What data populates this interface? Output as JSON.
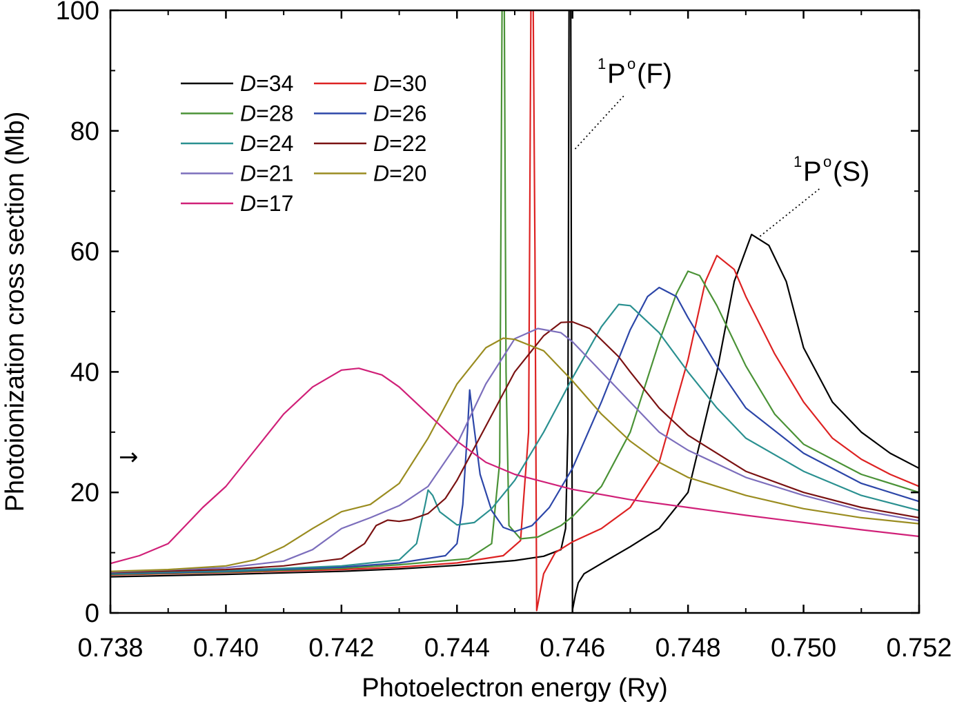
{
  "chart_data": {
    "type": "line",
    "xlabel": "Photoelectron energy (Ry)",
    "ylabel": "Photoionization cross section (Mb)",
    "xlim": [
      0.738,
      0.752
    ],
    "ylim": [
      0,
      100
    ],
    "xticks": [
      "0.738",
      "0.740",
      "0.742",
      "0.744",
      "0.746",
      "0.748",
      "0.750",
      "0.752"
    ],
    "yticks": [
      "0",
      "20",
      "40",
      "60",
      "80",
      "100"
    ],
    "grid": false,
    "legend_position": "top-left",
    "annotations": {
      "arrow": "→",
      "resonance_F": {
        "sup": "1",
        "base": "P",
        "sup2": "o",
        "text": "(F)",
        "x": 0.74595,
        "y": 77
      },
      "resonance_S": {
        "sup": "1",
        "base": "P",
        "sup2": "o",
        "text": "(S)",
        "x": 0.74915,
        "y": 62.5
      }
    },
    "series": [
      {
        "name": "D=34",
        "legend_italic": "D",
        "legend_rest": "=34",
        "color": "#000000",
        "points": [
          [
            0.738,
            6.0
          ],
          [
            0.74,
            6.4
          ],
          [
            0.742,
            6.9
          ],
          [
            0.743,
            7.3
          ],
          [
            0.744,
            7.9
          ],
          [
            0.745,
            8.7
          ],
          [
            0.7455,
            9.4
          ],
          [
            0.7458,
            10.5
          ],
          [
            0.74588,
            14
          ],
          [
            0.74592,
            30
          ],
          [
            0.74594,
            100
          ],
          [
            0.74597,
            100
          ],
          [
            0.74598,
            60
          ],
          [
            0.746,
            0.5
          ],
          [
            0.74605,
            3
          ],
          [
            0.7461,
            5
          ],
          [
            0.7462,
            6.5
          ],
          [
            0.7465,
            8.2
          ],
          [
            0.747,
            11.0
          ],
          [
            0.7475,
            14.0
          ],
          [
            0.748,
            20.0
          ],
          [
            0.7485,
            40.0
          ],
          [
            0.7488,
            55.0
          ],
          [
            0.7491,
            62.8
          ],
          [
            0.7494,
            61.0
          ],
          [
            0.7497,
            55.0
          ],
          [
            0.75,
            44.0
          ],
          [
            0.7505,
            35.0
          ],
          [
            0.751,
            30.0
          ],
          [
            0.7515,
            26.5
          ],
          [
            0.752,
            24.0
          ]
        ]
      },
      {
        "name": "D=30",
        "legend_italic": "D",
        "legend_rest": "=30",
        "color": "#dd2222",
        "points": [
          [
            0.738,
            6.3
          ],
          [
            0.74,
            6.7
          ],
          [
            0.742,
            7.2
          ],
          [
            0.743,
            7.6
          ],
          [
            0.744,
            8.3
          ],
          [
            0.7448,
            9.5
          ],
          [
            0.7451,
            12
          ],
          [
            0.74524,
            30
          ],
          [
            0.74528,
            100
          ],
          [
            0.74532,
            100
          ],
          [
            0.74535,
            60
          ],
          [
            0.74538,
            0.4
          ],
          [
            0.74545,
            4
          ],
          [
            0.7455,
            6.5
          ],
          [
            0.7457,
            10.0
          ],
          [
            0.746,
            11.8
          ],
          [
            0.7465,
            14.0
          ],
          [
            0.747,
            17.5
          ],
          [
            0.7475,
            25.0
          ],
          [
            0.748,
            42.0
          ],
          [
            0.7483,
            55.0
          ],
          [
            0.7485,
            59.3
          ],
          [
            0.7488,
            57.0
          ],
          [
            0.749,
            52.5
          ],
          [
            0.7495,
            43.0
          ],
          [
            0.75,
            35.0
          ],
          [
            0.7505,
            29.0
          ],
          [
            0.751,
            25.5
          ],
          [
            0.7515,
            23.0
          ],
          [
            0.752,
            21.0
          ]
        ]
      },
      {
        "name": "D=28",
        "legend_italic": "D",
        "legend_rest": "=28",
        "color": "#4a9236",
        "points": [
          [
            0.738,
            6.4
          ],
          [
            0.74,
            6.8
          ],
          [
            0.742,
            7.4
          ],
          [
            0.743,
            8.0
          ],
          [
            0.7442,
            9.0
          ],
          [
            0.7446,
            11.5
          ],
          [
            0.74474,
            25
          ],
          [
            0.74478,
            100
          ],
          [
            0.74482,
            100
          ],
          [
            0.74485,
            40
          ],
          [
            0.7449,
            14.5
          ],
          [
            0.7451,
            12.3
          ],
          [
            0.7454,
            12.6
          ],
          [
            0.7458,
            14.5
          ],
          [
            0.746,
            16.0
          ],
          [
            0.7465,
            21.0
          ],
          [
            0.747,
            30.0
          ],
          [
            0.7475,
            45.0
          ],
          [
            0.7478,
            53.0
          ],
          [
            0.748,
            56.7
          ],
          [
            0.7482,
            56.0
          ],
          [
            0.7485,
            51.0
          ],
          [
            0.749,
            41.0
          ],
          [
            0.7495,
            33.0
          ],
          [
            0.75,
            28.0
          ],
          [
            0.751,
            23.0
          ],
          [
            0.752,
            20.0
          ]
        ]
      },
      {
        "name": "D=26",
        "legend_italic": "D",
        "legend_rest": "=26",
        "color": "#2c46a8",
        "points": [
          [
            0.738,
            6.5
          ],
          [
            0.74,
            6.9
          ],
          [
            0.742,
            7.6
          ],
          [
            0.743,
            8.3
          ],
          [
            0.7438,
            9.5
          ],
          [
            0.744,
            11.5
          ],
          [
            0.7441,
            18
          ],
          [
            0.74418,
            30
          ],
          [
            0.74422,
            37
          ],
          [
            0.74428,
            32
          ],
          [
            0.7444,
            23
          ],
          [
            0.7446,
            17.0
          ],
          [
            0.7448,
            14.2
          ],
          [
            0.745,
            13.5
          ],
          [
            0.7453,
            14.5
          ],
          [
            0.7456,
            17.5
          ],
          [
            0.746,
            24.0
          ],
          [
            0.7465,
            35.0
          ],
          [
            0.747,
            47.0
          ],
          [
            0.7473,
            52.5
          ],
          [
            0.7475,
            54.0
          ],
          [
            0.7478,
            52.5
          ],
          [
            0.748,
            49.0
          ],
          [
            0.7485,
            41.0
          ],
          [
            0.749,
            34.0
          ],
          [
            0.75,
            26.5
          ],
          [
            0.751,
            21.5
          ],
          [
            0.752,
            18.5
          ]
        ]
      },
      {
        "name": "D=24",
        "legend_italic": "D",
        "legend_rest": "=24",
        "color": "#2a9090",
        "points": [
          [
            0.738,
            6.6
          ],
          [
            0.74,
            7.0
          ],
          [
            0.742,
            7.8
          ],
          [
            0.743,
            8.8
          ],
          [
            0.7433,
            11.5
          ],
          [
            0.74345,
            18
          ],
          [
            0.7435,
            20.4
          ],
          [
            0.74358,
            19.5
          ],
          [
            0.7437,
            16.8
          ],
          [
            0.744,
            14.6
          ],
          [
            0.7443,
            15.0
          ],
          [
            0.7446,
            17.3
          ],
          [
            0.745,
            22.0
          ],
          [
            0.7455,
            30.0
          ],
          [
            0.746,
            39.0
          ],
          [
            0.7465,
            47.5
          ],
          [
            0.7468,
            51.2
          ],
          [
            0.747,
            51.0
          ],
          [
            0.7475,
            46.5
          ],
          [
            0.748,
            40.0
          ],
          [
            0.7485,
            34.0
          ],
          [
            0.749,
            29.0
          ],
          [
            0.75,
            23.5
          ],
          [
            0.751,
            19.5
          ],
          [
            0.752,
            17.0
          ]
        ]
      },
      {
        "name": "D=22",
        "legend_italic": "D",
        "legend_rest": "=22",
        "color": "#7a1212",
        "points": [
          [
            0.738,
            6.7
          ],
          [
            0.74,
            7.2
          ],
          [
            0.741,
            7.8
          ],
          [
            0.742,
            9.0
          ],
          [
            0.7424,
            11.5
          ],
          [
            0.7426,
            14.5
          ],
          [
            0.7428,
            15.4
          ],
          [
            0.743,
            15.2
          ],
          [
            0.7432,
            15.5
          ],
          [
            0.7435,
            16.5
          ],
          [
            0.7438,
            19.0
          ],
          [
            0.744,
            22.0
          ],
          [
            0.7445,
            31.0
          ],
          [
            0.745,
            40.0
          ],
          [
            0.7455,
            46.0
          ],
          [
            0.7458,
            48.2
          ],
          [
            0.746,
            48.3
          ],
          [
            0.7463,
            47.2
          ],
          [
            0.7468,
            42.5
          ],
          [
            0.747,
            40.0
          ],
          [
            0.7475,
            34.0
          ],
          [
            0.748,
            29.5
          ],
          [
            0.749,
            23.5
          ],
          [
            0.75,
            20.0
          ],
          [
            0.751,
            17.5
          ],
          [
            0.752,
            15.8
          ]
        ]
      },
      {
        "name": "D=21",
        "legend_italic": "D",
        "legend_rest": "=21",
        "color": "#7c6ebc",
        "points": [
          [
            0.738,
            6.8
          ],
          [
            0.74,
            7.5
          ],
          [
            0.741,
            8.6
          ],
          [
            0.7415,
            10.5
          ],
          [
            0.742,
            14.0
          ],
          [
            0.7425,
            15.8
          ],
          [
            0.743,
            17.8
          ],
          [
            0.7435,
            21.0
          ],
          [
            0.744,
            28.0
          ],
          [
            0.7445,
            38.0
          ],
          [
            0.745,
            45.5
          ],
          [
            0.7454,
            47.2
          ],
          [
            0.7458,
            46.5
          ],
          [
            0.746,
            45.0
          ],
          [
            0.7465,
            40.0
          ],
          [
            0.747,
            35.0
          ],
          [
            0.7475,
            30.0
          ],
          [
            0.748,
            27.0
          ],
          [
            0.749,
            22.5
          ],
          [
            0.75,
            19.5
          ],
          [
            0.751,
            17.0
          ],
          [
            0.752,
            15.3
          ]
        ]
      },
      {
        "name": "D=20",
        "legend_italic": "D",
        "legend_rest": "=20",
        "color": "#9a8c20",
        "points": [
          [
            0.738,
            6.9
          ],
          [
            0.739,
            7.2
          ],
          [
            0.74,
            7.8
          ],
          [
            0.7405,
            8.8
          ],
          [
            0.741,
            11.0
          ],
          [
            0.7415,
            14.0
          ],
          [
            0.742,
            16.8
          ],
          [
            0.7425,
            18.0
          ],
          [
            0.743,
            21.5
          ],
          [
            0.7435,
            29.0
          ],
          [
            0.744,
            38.0
          ],
          [
            0.7445,
            44.0
          ],
          [
            0.7448,
            45.6
          ],
          [
            0.745,
            45.4
          ],
          [
            0.7455,
            43.5
          ],
          [
            0.746,
            38.5
          ],
          [
            0.7465,
            33.0
          ],
          [
            0.747,
            28.5
          ],
          [
            0.7475,
            25.0
          ],
          [
            0.748,
            22.5
          ],
          [
            0.749,
            19.5
          ],
          [
            0.75,
            17.3
          ],
          [
            0.751,
            15.8
          ],
          [
            0.752,
            14.8
          ]
        ]
      },
      {
        "name": "D=17",
        "legend_italic": "D",
        "legend_rest": "=17",
        "color": "#d02078",
        "points": [
          [
            0.738,
            8.2
          ],
          [
            0.7385,
            9.5
          ],
          [
            0.739,
            11.5
          ],
          [
            0.7392,
            13.5
          ],
          [
            0.7396,
            17.5
          ],
          [
            0.74,
            21.0
          ],
          [
            0.7405,
            27.0
          ],
          [
            0.741,
            33.0
          ],
          [
            0.7415,
            37.5
          ],
          [
            0.742,
            40.3
          ],
          [
            0.7423,
            40.6
          ],
          [
            0.7427,
            39.5
          ],
          [
            0.743,
            37.5
          ],
          [
            0.7435,
            33.0
          ],
          [
            0.744,
            28.5
          ],
          [
            0.7445,
            25.0
          ],
          [
            0.745,
            23.0
          ],
          [
            0.746,
            20.5
          ],
          [
            0.747,
            18.8
          ],
          [
            0.748,
            17.5
          ],
          [
            0.749,
            16.2
          ],
          [
            0.75,
            15.0
          ],
          [
            0.751,
            13.8
          ],
          [
            0.752,
            12.7
          ]
        ]
      }
    ]
  }
}
